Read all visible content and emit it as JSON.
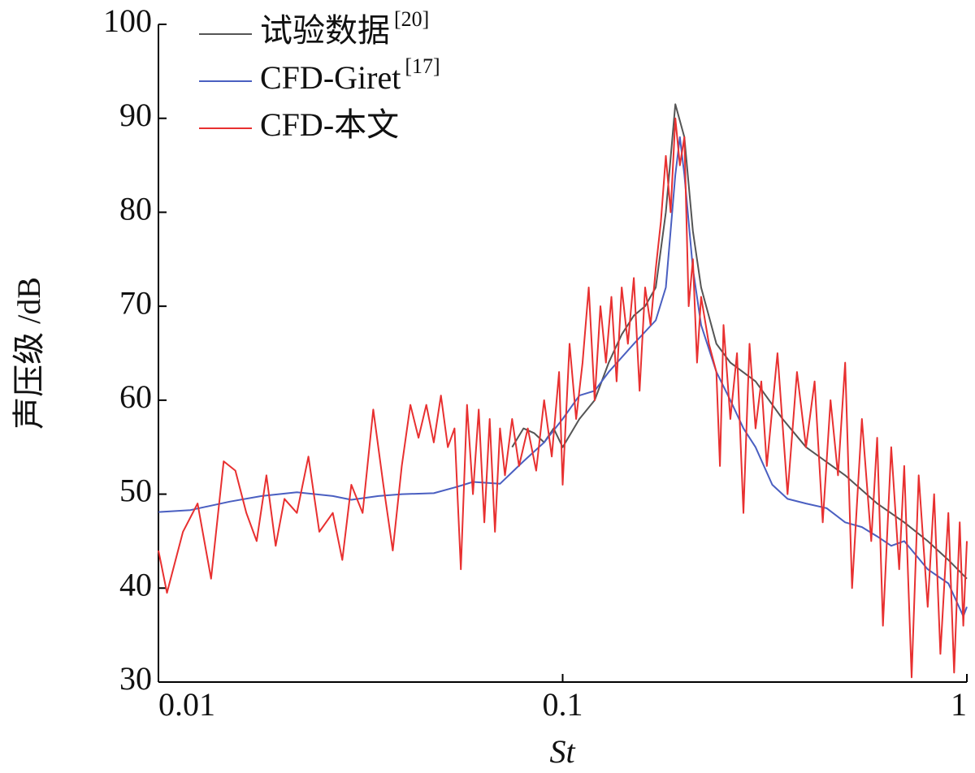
{
  "chart_data": {
    "type": "line",
    "x_scale": "log",
    "legend": "upper-left",
    "x_label": "St",
    "y_label": "声压级 /dB",
    "xlim": [
      0.01,
      1
    ],
    "xticks": [
      0.01,
      0.1,
      1
    ],
    "ylim": [
      30,
      100
    ],
    "yticks": [
      30,
      40,
      50,
      60,
      70,
      80,
      90,
      100
    ],
    "series": [
      {
        "name": "试验数据",
        "reference": "[20]",
        "color": "#555555",
        "x": [
          0.075,
          0.08,
          0.085,
          0.09,
          0.095,
          0.1,
          0.11,
          0.12,
          0.13,
          0.14,
          0.15,
          0.16,
          0.17,
          0.18,
          0.19,
          0.2,
          0.21,
          0.22,
          0.24,
          0.26,
          0.3,
          0.35,
          0.4,
          0.5,
          0.6,
          0.7,
          0.8,
          0.9,
          1
        ],
        "values": [
          55,
          57,
          56.5,
          55.5,
          57,
          55,
          58,
          60,
          64,
          67,
          69,
          70,
          72,
          80,
          91.5,
          88,
          78,
          72,
          66,
          64,
          62,
          58,
          55,
          52,
          49,
          47,
          45,
          43,
          41
        ]
      },
      {
        "name": "CFD-Giret",
        "reference": "[17]",
        "color": "#4a5fc1",
        "x": [
          0.01,
          0.012,
          0.015,
          0.018,
          0.022,
          0.027,
          0.03,
          0.035,
          0.04,
          0.048,
          0.055,
          0.06,
          0.07,
          0.08,
          0.09,
          0.1,
          0.11,
          0.12,
          0.13,
          0.15,
          0.17,
          0.18,
          0.19,
          0.195,
          0.2,
          0.21,
          0.22,
          0.24,
          0.26,
          0.28,
          0.3,
          0.33,
          0.36,
          0.4,
          0.45,
          0.5,
          0.55,
          0.6,
          0.65,
          0.7,
          0.8,
          0.9,
          0.98,
          1
        ],
        "values": [
          48.1,
          48.3,
          49.2,
          49.8,
          50.2,
          49.8,
          49.4,
          49.8,
          50,
          50.1,
          50.8,
          51.3,
          51.1,
          53.5,
          55.5,
          58,
          60.5,
          61,
          63,
          66,
          68.5,
          72,
          84,
          88,
          84,
          74,
          68,
          63,
          60,
          57,
          55,
          51,
          49.5,
          49,
          48.5,
          47,
          46.5,
          45.5,
          44.5,
          45,
          42,
          40.5,
          37,
          38
        ]
      },
      {
        "name": "CFD-本文",
        "color": "#e83030",
        "x": [
          0.01,
          0.0105,
          0.0115,
          0.0125,
          0.0135,
          0.0145,
          0.0155,
          0.0165,
          0.0175,
          0.0185,
          0.0195,
          0.0205,
          0.022,
          0.0235,
          0.025,
          0.027,
          0.0285,
          0.03,
          0.032,
          0.034,
          0.036,
          0.038,
          0.04,
          0.042,
          0.044,
          0.046,
          0.048,
          0.05,
          0.052,
          0.054,
          0.056,
          0.058,
          0.06,
          0.062,
          0.064,
          0.066,
          0.068,
          0.07,
          0.072,
          0.075,
          0.078,
          0.082,
          0.086,
          0.09,
          0.094,
          0.098,
          0.1,
          0.104,
          0.108,
          0.112,
          0.116,
          0.12,
          0.124,
          0.128,
          0.132,
          0.136,
          0.14,
          0.145,
          0.15,
          0.155,
          0.16,
          0.165,
          0.17,
          0.175,
          0.18,
          0.185,
          0.19,
          0.195,
          0.2,
          0.205,
          0.21,
          0.215,
          0.22,
          0.23,
          0.24,
          0.245,
          0.25,
          0.26,
          0.27,
          0.28,
          0.29,
          0.3,
          0.31,
          0.32,
          0.34,
          0.36,
          0.38,
          0.4,
          0.42,
          0.44,
          0.46,
          0.48,
          0.5,
          0.52,
          0.55,
          0.58,
          0.6,
          0.62,
          0.65,
          0.68,
          0.7,
          0.73,
          0.76,
          0.8,
          0.83,
          0.86,
          0.9,
          0.93,
          0.96,
          0.98,
          1
        ],
        "values": [
          44,
          39.5,
          46,
          49,
          41,
          53.5,
          52.5,
          48,
          45,
          52,
          44.5,
          49.5,
          48,
          54,
          46,
          48,
          43,
          51,
          48,
          59,
          51,
          44,
          53,
          59.5,
          56,
          59.5,
          55.5,
          60.5,
          55,
          57,
          42,
          59.5,
          50,
          59,
          47,
          58,
          46,
          57,
          52,
          58,
          53,
          57,
          52.5,
          60,
          54,
          63,
          51,
          66,
          58,
          64,
          72,
          60,
          70,
          64,
          71,
          62,
          72,
          66,
          73,
          61,
          72,
          68,
          74,
          79,
          86,
          80,
          90,
          85,
          88,
          70,
          75,
          64,
          71,
          66,
          63,
          53,
          68,
          58,
          65,
          48,
          66,
          57,
          62,
          53,
          65,
          50,
          63,
          55,
          62,
          47,
          60,
          52,
          64,
          40,
          58,
          45,
          56,
          36,
          55,
          42,
          53,
          30.5,
          52,
          38,
          50,
          33,
          48,
          31,
          47,
          36,
          45
        ]
      }
    ]
  }
}
